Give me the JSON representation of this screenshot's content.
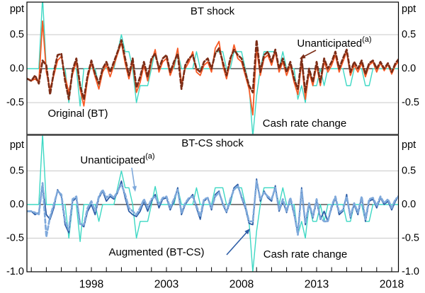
{
  "page": {
    "background": "#ffffff"
  },
  "chart_data": [
    {
      "type": "line",
      "panel": "top",
      "title": "BT shock",
      "axis_unit": "ppt",
      "ylim": [
        -0.97,
        0.98
      ],
      "grid": "horizontal",
      "yticks": [
        {
          "label": "0.5",
          "value": 0.5
        },
        {
          "label": "0.0",
          "value": 0.0
        },
        {
          "label": "-0.5",
          "value": -0.5
        }
      ],
      "x_start": 1993.75,
      "x_step": 0.25,
      "series": [
        {
          "name": "Cash rate change",
          "color": "#3DD8C4",
          "dash": false,
          "values": [
            0,
            0,
            0,
            0,
            1.05,
            0,
            0,
            0,
            0,
            0,
            0,
            -0.5,
            0,
            0,
            -0.55,
            0,
            0,
            0,
            0,
            -0.25,
            0,
            0,
            0,
            0,
            0.25,
            0.5,
            0.25,
            0.25,
            0,
            -0.5,
            -0.25,
            -0.25,
            -0.25,
            0,
            0.27,
            0,
            0,
            0,
            0,
            0,
            0.25,
            0,
            0,
            0,
            0,
            0.25,
            0,
            0,
            0,
            0,
            0.25,
            0.25,
            0.25,
            0,
            0,
            0.25,
            0.25,
            0.25,
            0,
            -0.25,
            -1.0,
            -0.4,
            0,
            0.25,
            0.25,
            0.25,
            0.25,
            0,
            0.25,
            0,
            0,
            0,
            -0.45,
            -0.25,
            -0.5,
            0,
            -0.25,
            -0.25,
            0,
            -0.25,
            0,
            0,
            0,
            0,
            0,
            -0.25,
            -0.25,
            0,
            0,
            0,
            -0.25,
            -0.25,
            0,
            0,
            0,
            0,
            0,
            0,
            0,
            0
          ]
        },
        {
          "name": "Original (BT)",
          "color": "#F85A25",
          "dash": false,
          "values": [
            -0.15,
            -0.18,
            -0.15,
            -0.2,
            0.7,
            -0.05,
            -0.3,
            -0.1,
            0.12,
            0.18,
            -0.12,
            -0.35,
            -0.08,
            0.1,
            -0.3,
            -0.55,
            -0.15,
            0.08,
            -0.12,
            -0.3,
            -0.05,
            0.05,
            -0.12,
            0.05,
            0.22,
            0.38,
            0.08,
            -0.15,
            0.1,
            -0.35,
            -0.2,
            0.05,
            -0.18,
            0.1,
            0.28,
            -0.05,
            0.1,
            0.15,
            -0.1,
            0.05,
            0.3,
            -0.22,
            0,
            0.1,
            0.25,
            -0.05,
            -0.1,
            0.05,
            0.1,
            -0.05,
            0.3,
            0.4,
            0.05,
            -0.15,
            0.1,
            0.35,
            0.15,
            0.1,
            -0.1,
            -0.3,
            -0.68,
            0.3,
            -0.1,
            0.15,
            0.2,
            0.05,
            0.25,
            -0.05,
            0.1,
            -0.1,
            0.05,
            -0.2,
            -0.38,
            0.1,
            -0.45,
            -0.05,
            -0.25,
            0.05,
            -0.25,
            0.1,
            -0.05,
            0.05,
            0.2,
            -0.05,
            0.1,
            0.25,
            -0.1,
            0.05,
            -0.05,
            0.08,
            -0.12,
            0.05,
            0.1,
            -0.05,
            0.08,
            -0.03,
            0.06,
            -0.08,
            0.05,
            0.12
          ]
        },
        {
          "name": "Unanticipated",
          "sup": "(a)",
          "color": "#7C2D17",
          "dash": true,
          "values": [
            -0.15,
            -0.18,
            -0.1,
            -0.22,
            0.12,
            0.05,
            -0.38,
            -0.05,
            0.2,
            0.22,
            -0.18,
            -0.45,
            -0.02,
            0.15,
            -0.25,
            -0.45,
            -0.1,
            0.12,
            -0.08,
            -0.22,
            0,
            0.1,
            -0.05,
            0.1,
            0.25,
            0.42,
            0.15,
            -0.1,
            0.15,
            -0.28,
            -0.12,
            0.1,
            -0.12,
            0.15,
            0.22,
            0,
            0.15,
            0.2,
            -0.05,
            0.1,
            0.22,
            -0.3,
            0.05,
            0.15,
            0.2,
            0,
            -0.05,
            0.1,
            0.15,
            0,
            0.22,
            0.3,
            0.1,
            -0.1,
            0.15,
            0.28,
            0.2,
            0.15,
            -0.05,
            -0.25,
            -0.35,
            0.42,
            -0.05,
            0.2,
            0.25,
            0.1,
            0.28,
            0,
            0.15,
            -0.05,
            0.1,
            -0.15,
            -0.3,
            0.15,
            -0.35,
            0,
            -0.2,
            0.1,
            -0.2,
            0.15,
            0,
            0.1,
            0.25,
            0,
            0.15,
            0.28,
            -0.05,
            0.1,
            0,
            0.12,
            -0.08,
            0.08,
            0.12,
            0,
            0.1,
            0,
            0.08,
            -0.05,
            0.08,
            0.15
          ]
        }
      ],
      "annotations": [
        {
          "text": "Unanticipated",
          "sup": "(a)",
          "color": "#7C2D17"
        },
        {
          "text": "Original (BT)",
          "color": "#F85A25"
        },
        {
          "text": "Cash rate change",
          "color": "#3DD8C4"
        }
      ]
    },
    {
      "type": "line",
      "panel": "bottom",
      "title": "BT-CS shock",
      "axis_unit": "ppt",
      "ylim": [
        -1.0,
        1.03
      ],
      "grid": "horizontal",
      "yticks": [
        {
          "label": "0.5",
          "value": 0.5
        },
        {
          "label": "0.0",
          "value": 0.0
        },
        {
          "label": "-0.5",
          "value": -0.5
        },
        {
          "label": "-1.0",
          "value": -1.0
        }
      ],
      "x_start": 1993.75,
      "x_step": 0.25,
      "xticks": [
        {
          "label": "1998",
          "year": 1998
        },
        {
          "label": "2003",
          "year": 2003
        },
        {
          "label": "2008",
          "year": 2008
        },
        {
          "label": "2013",
          "year": 2013
        },
        {
          "label": "2018",
          "year": 2018
        }
      ],
      "series": [
        {
          "name": "Cash rate change",
          "color": "#3DD8C4",
          "dash": false,
          "values": [
            0,
            0,
            0,
            0,
            1.05,
            0,
            0,
            0,
            0,
            0,
            0,
            -0.5,
            0,
            0,
            -0.55,
            0,
            0,
            0,
            0,
            -0.25,
            0,
            0,
            0,
            0,
            0.25,
            0.5,
            0.25,
            0.25,
            0,
            -0.5,
            -0.25,
            -0.25,
            -0.25,
            0,
            0.27,
            0,
            0,
            0,
            0,
            0,
            0.25,
            0,
            0,
            0,
            0,
            0.25,
            0,
            0,
            0,
            0,
            0.25,
            0.25,
            0.25,
            0,
            0,
            0.25,
            0.25,
            0.25,
            0,
            -0.25,
            -1.0,
            -0.4,
            0,
            0.25,
            0.25,
            0.25,
            0.25,
            0,
            0.25,
            0,
            0,
            0,
            -0.45,
            -0.25,
            -0.5,
            0,
            -0.25,
            -0.25,
            0,
            -0.25,
            0,
            0,
            0,
            0,
            0,
            -0.25,
            -0.25,
            0,
            0,
            0,
            -0.25,
            -0.25,
            0,
            0,
            0,
            0,
            0,
            0,
            0,
            0
          ]
        },
        {
          "name": "Augmented (BT-CS)",
          "color": "#2D5DA6",
          "dash": false,
          "values": [
            -0.1,
            -0.1,
            -0.15,
            -0.12,
            0.3,
            -0.15,
            -0.22,
            -0.05,
            0.22,
            0.12,
            -0.3,
            -0.42,
            0.05,
            0.1,
            -0.28,
            -0.33,
            -0.1,
            0,
            -0.15,
            0.1,
            0.2,
            0.05,
            0.12,
            0.08,
            0.18,
            0.35,
            0.1,
            -0.1,
            -0.15,
            -0.18,
            -0.1,
            0.05,
            -0.1,
            0.05,
            0.15,
            -0.05,
            0.08,
            0.1,
            -0.08,
            0.05,
            0.25,
            -0.15,
            0,
            0.08,
            0.15,
            -0.05,
            -0.22,
            0.05,
            0.1,
            -0.08,
            0.15,
            0.2,
            0,
            -0.12,
            0.05,
            0.25,
            0.3,
            0.1,
            -0.05,
            -0.28,
            -0.3,
            0.38,
            0.05,
            0.2,
            0.1,
            0.05,
            0.28,
            -0.1,
            0.05,
            -0.12,
            0.08,
            -0.15,
            -0.42,
            0.25,
            -0.3,
            0,
            -0.2,
            0.05,
            -0.22,
            -0.1,
            -0.25,
            -0.05,
            0.1,
            -0.15,
            -0.1,
            0.15,
            -0.2,
            0,
            -0.15,
            0.1,
            -0.25,
            0.05,
            0.08,
            -0.05,
            0.1,
            0,
            0.05,
            -0.08,
            0.05,
            0.15
          ]
        },
        {
          "name": "Unanticipated",
          "sup": "(a)",
          "color": "#7FA9DB",
          "dash": true,
          "values": [
            -0.1,
            -0.1,
            -0.12,
            -0.15,
            0.32,
            -0.48,
            -0.18,
            0,
            0.2,
            0.15,
            -0.25,
            -0.38,
            0.08,
            0.12,
            -0.3,
            -0.3,
            -0.05,
            0.05,
            -0.1,
            0.12,
            0.22,
            0.1,
            0.15,
            0.1,
            0.2,
            0.3,
            0.15,
            -0.05,
            -0.1,
            -0.15,
            -0.05,
            0.08,
            -0.05,
            0.08,
            0.12,
            0,
            0.1,
            0.12,
            -0.05,
            0.08,
            0.22,
            -0.12,
            0.02,
            0.1,
            0.12,
            -0.02,
            -0.18,
            0.08,
            0.1,
            -0.05,
            0.12,
            0.18,
            0.02,
            -0.1,
            0.08,
            0.22,
            0.28,
            0.12,
            -0.02,
            -0.25,
            -0.25,
            0.35,
            0.08,
            0.18,
            0.12,
            0.08,
            0.25,
            -0.08,
            0.08,
            -0.1,
            0.1,
            -0.12,
            -0.45,
            0.22,
            -0.28,
            0.02,
            -0.18,
            0.08,
            -0.2,
            -0.25,
            -0.25,
            -0.02,
            0.12,
            -0.12,
            -0.08,
            0.12,
            -0.18,
            0.02,
            -0.12,
            0.12,
            -0.22,
            0.08,
            0.1,
            -0.02,
            0.12,
            0.02,
            0.08,
            -0.05,
            0.08,
            0.12
          ]
        }
      ],
      "annotations": [
        {
          "text": "Unanticipated",
          "sup": "(a)",
          "color": "#7FA9DB"
        },
        {
          "text": "Augmented (BT-CS)",
          "color": "#2D5DA6"
        },
        {
          "text": "Cash rate change",
          "color": "#3DD8C4"
        }
      ]
    }
  ]
}
